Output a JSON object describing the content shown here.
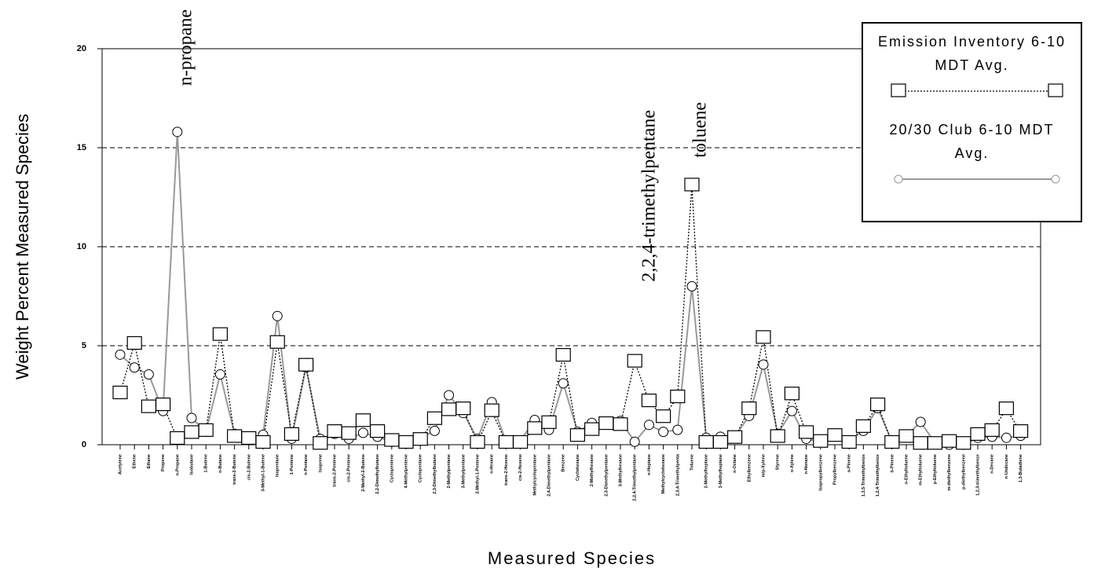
{
  "chart_data": {
    "type": "line",
    "y_label": "Weight Percent Measured Species",
    "x_label": "Measured Species",
    "categories": [
      "Acetylene",
      "Ethene",
      "Ethane",
      "Propene",
      "n-Propane",
      "Isobutane",
      "1-Butene",
      "n-Butane",
      "trans-2-Butene",
      "cis-2-Butene",
      "3-Methyl-1-Butene",
      "Isopentane",
      "1-Pentene",
      "n-Pentane",
      "Isoprene",
      "trans-2-Pentene",
      "cis-2-Pentene",
      "2-Methyl-2-Butene",
      "2,2-Dimethylbutane",
      "Cyclopentene",
      "4-Methylpentene",
      "Cyclopentane",
      "2,3-Dimethylbutane",
      "2-Methylpentane",
      "3-Methylpentane",
      "2-Methyl-1-Pentene",
      "n-Hexane",
      "trans-2-Hexene",
      "cis-2-Hexene",
      "Methylcyclopentane",
      "2,4-Dimethylpentane",
      "Benzene",
      "Cyclohexane",
      "2-Methylhexane",
      "2,3-Dimethylpentane",
      "3-Methylhexane",
      "2,2,4-Trimethylpentane",
      "n-Heptane",
      "Methylcyclohexane",
      "2,3,4-Trimethylpenta",
      "Toluene",
      "2-Methylheptane",
      "3-Methylheptane",
      "n-Octane",
      "Ethylbenzene",
      "m/p-Xylene",
      "Styrene",
      "o-Xylene",
      "n-Nonane",
      "Isopropylbenzene",
      "Propylbenzene",
      "a-Pinene",
      "1,3,5-Trimethylbenze",
      "1,2,4-Trimethylbenze",
      "b-Pinene",
      "o-Ethyltoluene",
      "m-Ethyltoluene",
      "p-Ethyltoluene",
      "m-diethylbenzene",
      "p-diethylbenzene",
      "1,2,3-trimethylbenze",
      "n-Decane",
      "n-Undecane",
      "1,3-Butadiene"
    ],
    "series": [
      {
        "name": "Emission Inventory 6-10 MDT Avg.",
        "color": "#000000",
        "marker": "square",
        "values": [
          2.6,
          5.1,
          1.9,
          2.0,
          0.3,
          0.6,
          0.7,
          5.55,
          0.4,
          0.3,
          0.1,
          5.15,
          0.5,
          4.0,
          0.05,
          0.65,
          0.55,
          1.2,
          0.65,
          0.2,
          0.1,
          0.25,
          1.3,
          1.75,
          1.8,
          0.1,
          1.7,
          0.1,
          0.1,
          0.8,
          1.1,
          4.5,
          0.45,
          0.75,
          1.05,
          1.0,
          4.2,
          2.2,
          1.4,
          2.4,
          13.1,
          0.1,
          0.1,
          0.35,
          1.8,
          5.4,
          0.4,
          2.55,
          0.6,
          0.15,
          0.45,
          0.1,
          0.9,
          2.0,
          0.1,
          0.4,
          0.05,
          0.05,
          0.15,
          0.05,
          0.5,
          0.7,
          1.8,
          0.65
        ]
      },
      {
        "name": "20/30 Club 6-10 MDT Avg.",
        "color": "#999999",
        "marker": "circle",
        "values": [
          4.55,
          3.9,
          3.55,
          1.7,
          15.8,
          1.35,
          0.65,
          3.55,
          0.55,
          0.25,
          0.5,
          6.5,
          0.3,
          3.9,
          0.3,
          0.55,
          0.3,
          0.6,
          0.4,
          0.15,
          0.1,
          0.35,
          0.7,
          2.5,
          1.6,
          0.3,
          2.15,
          0.15,
          0.2,
          1.25,
          0.75,
          3.1,
          0.65,
          1.1,
          1.05,
          1.2,
          0.15,
          1.0,
          0.65,
          0.75,
          8.0,
          0.35,
          0.4,
          0.4,
          1.45,
          4.05,
          0.55,
          1.7,
          0.3,
          0.15,
          0.45,
          0.2,
          0.7,
          1.85,
          0.15,
          0.45,
          1.15,
          0.1,
          0.0,
          0.0,
          0.35,
          0.4,
          0.35,
          0.45
        ]
      }
    ],
    "annotations": [
      "n-propane",
      "2,2,4-trimethylpentane",
      "toluene"
    ],
    "ylim": [
      0,
      20
    ],
    "yticks": [
      0,
      5,
      10,
      15,
      20
    ],
    "grid": true,
    "legend": "top-right"
  }
}
